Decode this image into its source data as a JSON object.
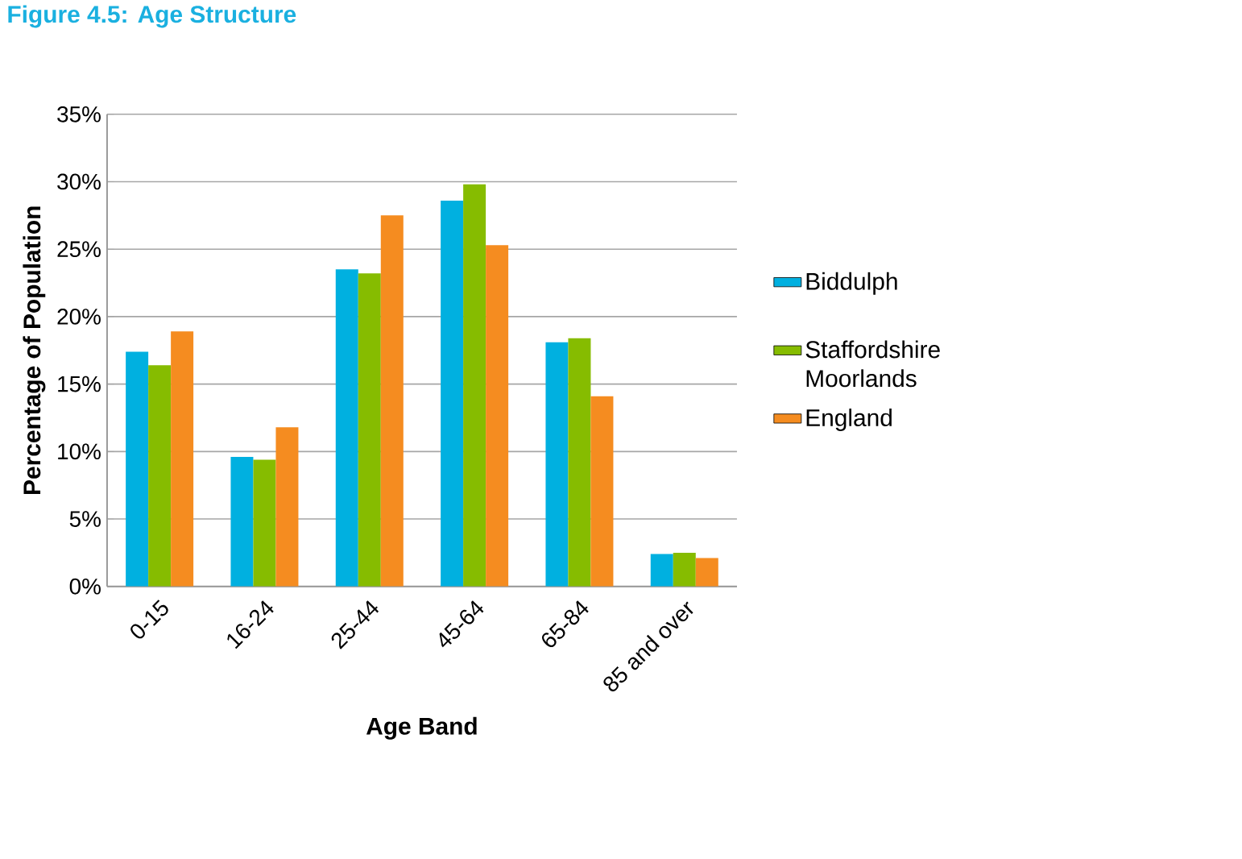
{
  "chart_data": {
    "type": "bar",
    "title": "Figure 4.5: Age Structure",
    "xlabel": "Age Band",
    "ylabel": "Percentage of Population",
    "categories": [
      "0-15",
      "16-24",
      "25-44",
      "45-64",
      "65-84",
      "85 and over"
    ],
    "series": [
      {
        "name": "Biddulph",
        "color": "#00b0e0",
        "values": [
          17.4,
          9.6,
          23.5,
          28.6,
          18.1,
          2.4
        ]
      },
      {
        "name": "Staffordshire Moorlands",
        "color": "#86bc00",
        "values": [
          16.4,
          9.4,
          23.2,
          29.8,
          18.4,
          2.5
        ]
      },
      {
        "name": "England",
        "color": "#f58c20",
        "values": [
          18.9,
          11.8,
          27.5,
          25.3,
          14.1,
          2.1
        ]
      }
    ],
    "ylim": [
      0,
      35
    ],
    "yticks": [
      {
        "value": 0,
        "label": "0%"
      },
      {
        "value": 5,
        "label": "5%"
      },
      {
        "value": 10,
        "label": "10%"
      },
      {
        "value": 15,
        "label": "15%"
      },
      {
        "value": 20,
        "label": "20%"
      },
      {
        "value": 25,
        "label": "25%"
      },
      {
        "value": 30,
        "label": "30%"
      },
      {
        "value": 35,
        "label": "35%"
      }
    ],
    "grid": "y",
    "legend": "right"
  }
}
